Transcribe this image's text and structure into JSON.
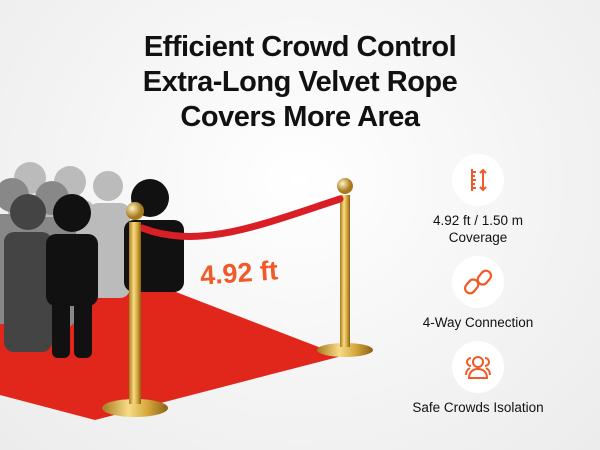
{
  "headline": [
    "Efficient Crowd Control",
    "Extra-Long Velvet Rope",
    "Covers More Area"
  ],
  "dimension_label": "4.92 ft",
  "features": [
    {
      "icon": "height-ruler-icon",
      "lines": [
        "4.92 ft / 1.50 m",
        "Coverage"
      ]
    },
    {
      "icon": "chain-link-icon",
      "lines": [
        "4-Way Connection"
      ]
    },
    {
      "icon": "people-group-icon",
      "lines": [
        "Safe Crowds Isolation"
      ]
    }
  ],
  "colors": {
    "accent": "#f05a28",
    "rope": "#d91f26",
    "carpet": "#e1261c",
    "gold": "#d4a53a"
  }
}
